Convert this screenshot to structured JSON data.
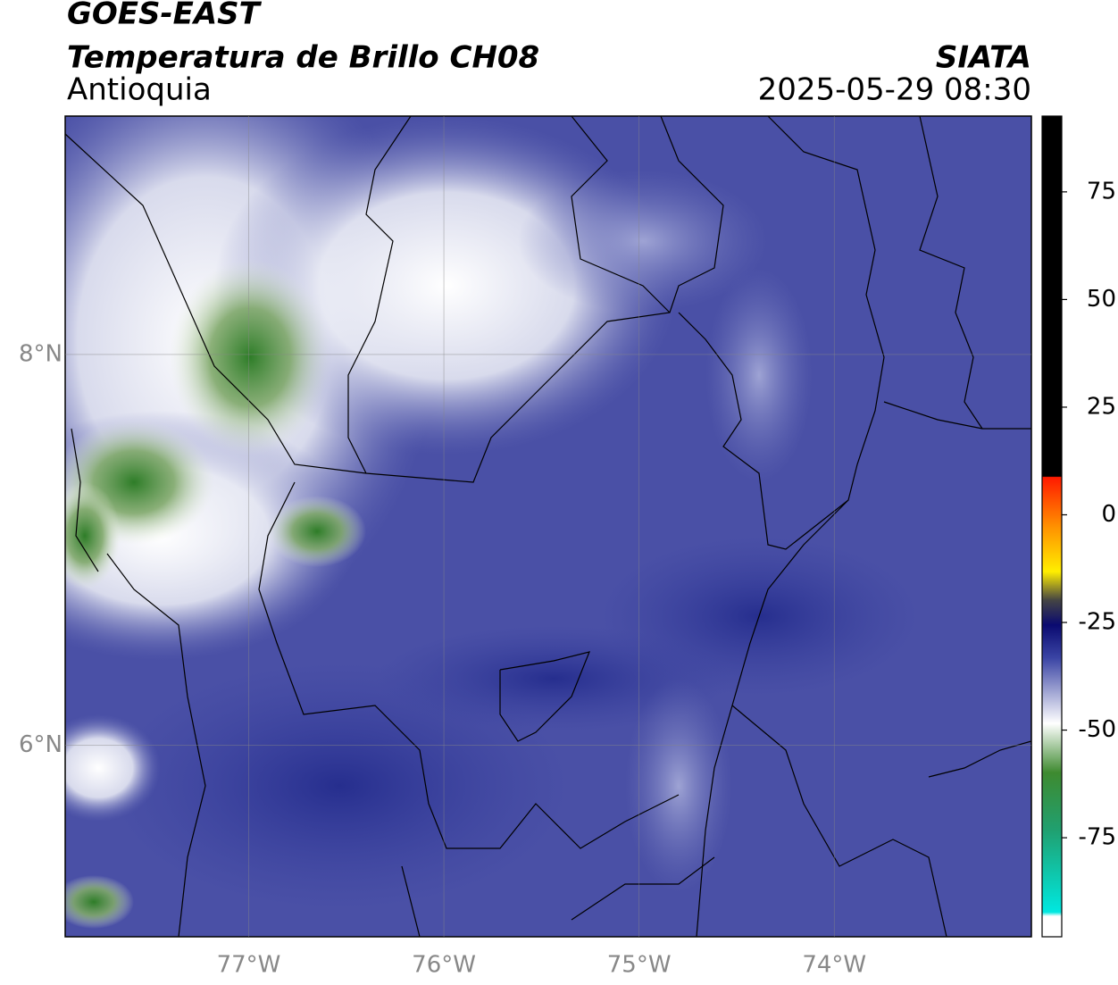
{
  "header": {
    "title": "GOES-EAST",
    "subtitle": "Temperatura de Brillo CH08",
    "region": "Antioquia",
    "source": "SIATA",
    "timestamp": "2025-05-29 08:30"
  },
  "map": {
    "lonlim": [
      -77.94,
      -72.99
    ],
    "latlim": [
      5.02,
      9.22
    ],
    "lon_ticks": [
      {
        "value": -77,
        "label": "77°W"
      },
      {
        "value": -76,
        "label": "76°W"
      },
      {
        "value": -75,
        "label": "75°W"
      },
      {
        "value": -74,
        "label": "74°W"
      }
    ],
    "lat_ticks": [
      {
        "value": 8,
        "label": "8°N"
      },
      {
        "value": 6,
        "label": "6°N"
      }
    ]
  },
  "colorbar": {
    "lim": [
      -98,
      92.6
    ],
    "ticks": [
      75,
      50,
      25,
      0,
      -25,
      -50,
      -75
    ]
  }
}
